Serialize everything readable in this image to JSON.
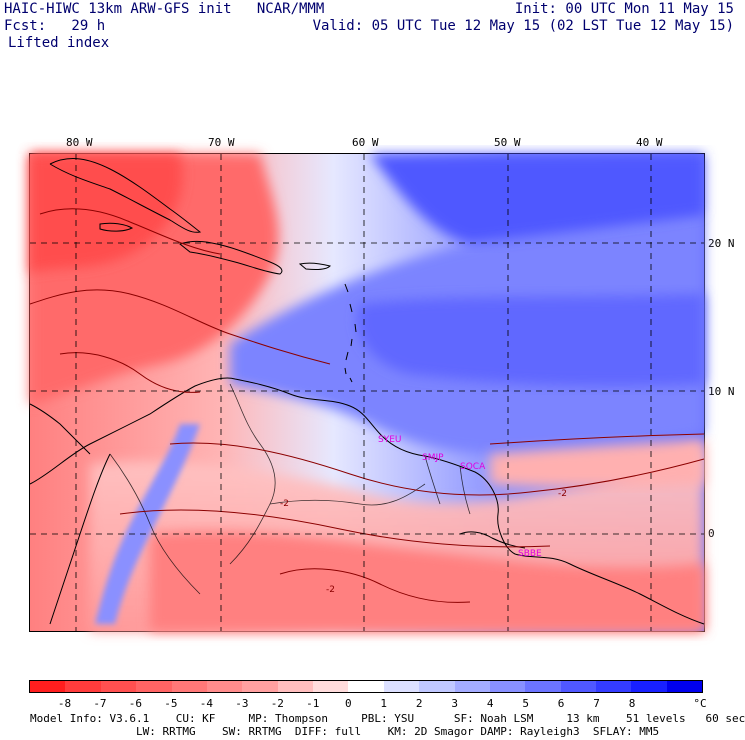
{
  "header": {
    "line1_left": "HAIC-HIWC 13km ARW-GFS init   NCAR/MMM",
    "line2_left": "Fcst:   29 h",
    "line3_left": "Lifted index",
    "init": "Init: 00 UTC Mon 11 May 15",
    "valid": "Valid: 05 UTC Tue 12 May 15 (02 LST Tue 12 May 15)"
  },
  "map": {
    "lon_labels": [
      "80 W",
      "70 W",
      "60 W",
      "50 W",
      "40 W"
    ],
    "lat_labels": [
      "20 N",
      "10 N",
      "0"
    ],
    "stations": [
      {
        "id": "SYEU",
        "color": "#e000e0"
      },
      {
        "id": "SMJP",
        "color": "#e000e0"
      },
      {
        "id": "SOCA",
        "color": "#e000e0"
      },
      {
        "id": "SBBE",
        "color": "#e000e0"
      }
    ],
    "contour_labels": [
      "-2",
      "-2",
      "-2"
    ]
  },
  "colorbar": {
    "labels": [
      "-8",
      "-7",
      "-6",
      "-5",
      "-4",
      "-3",
      "-2",
      "-1",
      "0",
      "1",
      "2",
      "3",
      "4",
      "5",
      "6",
      "7",
      "8"
    ],
    "unit": "°C",
    "colors": [
      "#ff1e1e",
      "#ff3c3c",
      "#ff5050",
      "#ff6464",
      "#ff7878",
      "#ff8c8c",
      "#ffa0a0",
      "#ffbebe",
      "#ffdcdc",
      "#ffffff",
      "#dce0ff",
      "#c0c8ff",
      "#a4acff",
      "#8890ff",
      "#6c74ff",
      "#5058ff",
      "#343cff",
      "#1820ff",
      "#0000ee"
    ]
  },
  "footer": {
    "line1": "Model Info: V3.6.1    CU: KF     MP: Thompson     PBL: YSU      SF: Noah LSM     13 km    51 levels   60 sec",
    "line2": "                LW: RRTMG    SW: RRTMG  DIFF: full    KM: 2D Smagor DAMP: Rayleigh3  SFLAY: MM5"
  }
}
